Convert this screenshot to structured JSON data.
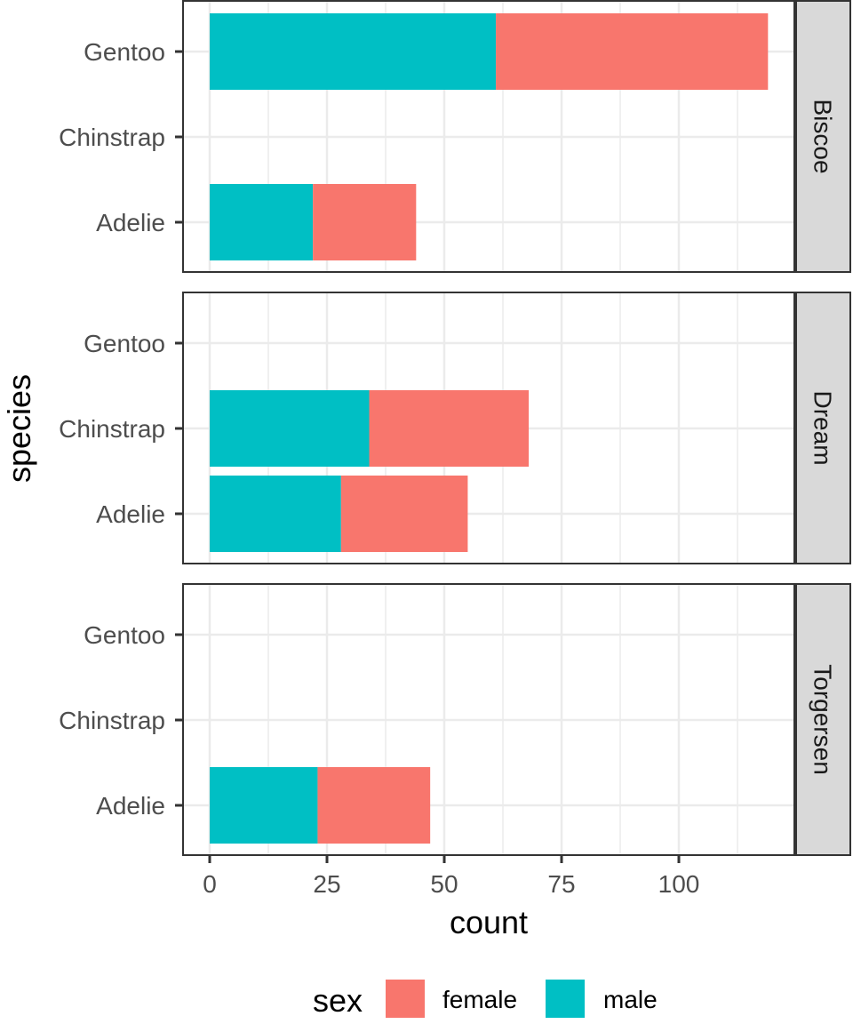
{
  "chart_data": {
    "type": "bar",
    "orientation": "horizontal",
    "stacked": true,
    "facet_by": "island",
    "facets": [
      "Biscoe",
      "Dream",
      "Torgersen"
    ],
    "categories": [
      "Adelie",
      "Chinstrap",
      "Gentoo"
    ],
    "xlabel": "count",
    "ylabel": "species",
    "xlim": [
      0,
      120
    ],
    "xticks": [
      0,
      25,
      50,
      75,
      100
    ],
    "xtick_labels": [
      "0",
      "25",
      "50",
      "75",
      "100"
    ],
    "grid": true,
    "legend": {
      "title": "sex",
      "position": "bottom",
      "entries": [
        {
          "name": "female",
          "color": "#F8766D"
        },
        {
          "name": "male",
          "color": "#00BFC4"
        }
      ]
    },
    "series": [
      {
        "name": "male",
        "color": "#00BFC4",
        "values": {
          "Biscoe": {
            "Adelie": 22,
            "Chinstrap": 0,
            "Gentoo": 61
          },
          "Dream": {
            "Adelie": 28,
            "Chinstrap": 34,
            "Gentoo": 0
          },
          "Torgersen": {
            "Adelie": 23,
            "Chinstrap": 0,
            "Gentoo": 0
          }
        }
      },
      {
        "name": "female",
        "color": "#F8766D",
        "values": {
          "Biscoe": {
            "Adelie": 22,
            "Chinstrap": 0,
            "Gentoo": 58
          },
          "Dream": {
            "Adelie": 27,
            "Chinstrap": 34,
            "Gentoo": 0
          },
          "Torgersen": {
            "Adelie": 24,
            "Chinstrap": 0,
            "Gentoo": 0
          }
        }
      }
    ]
  }
}
